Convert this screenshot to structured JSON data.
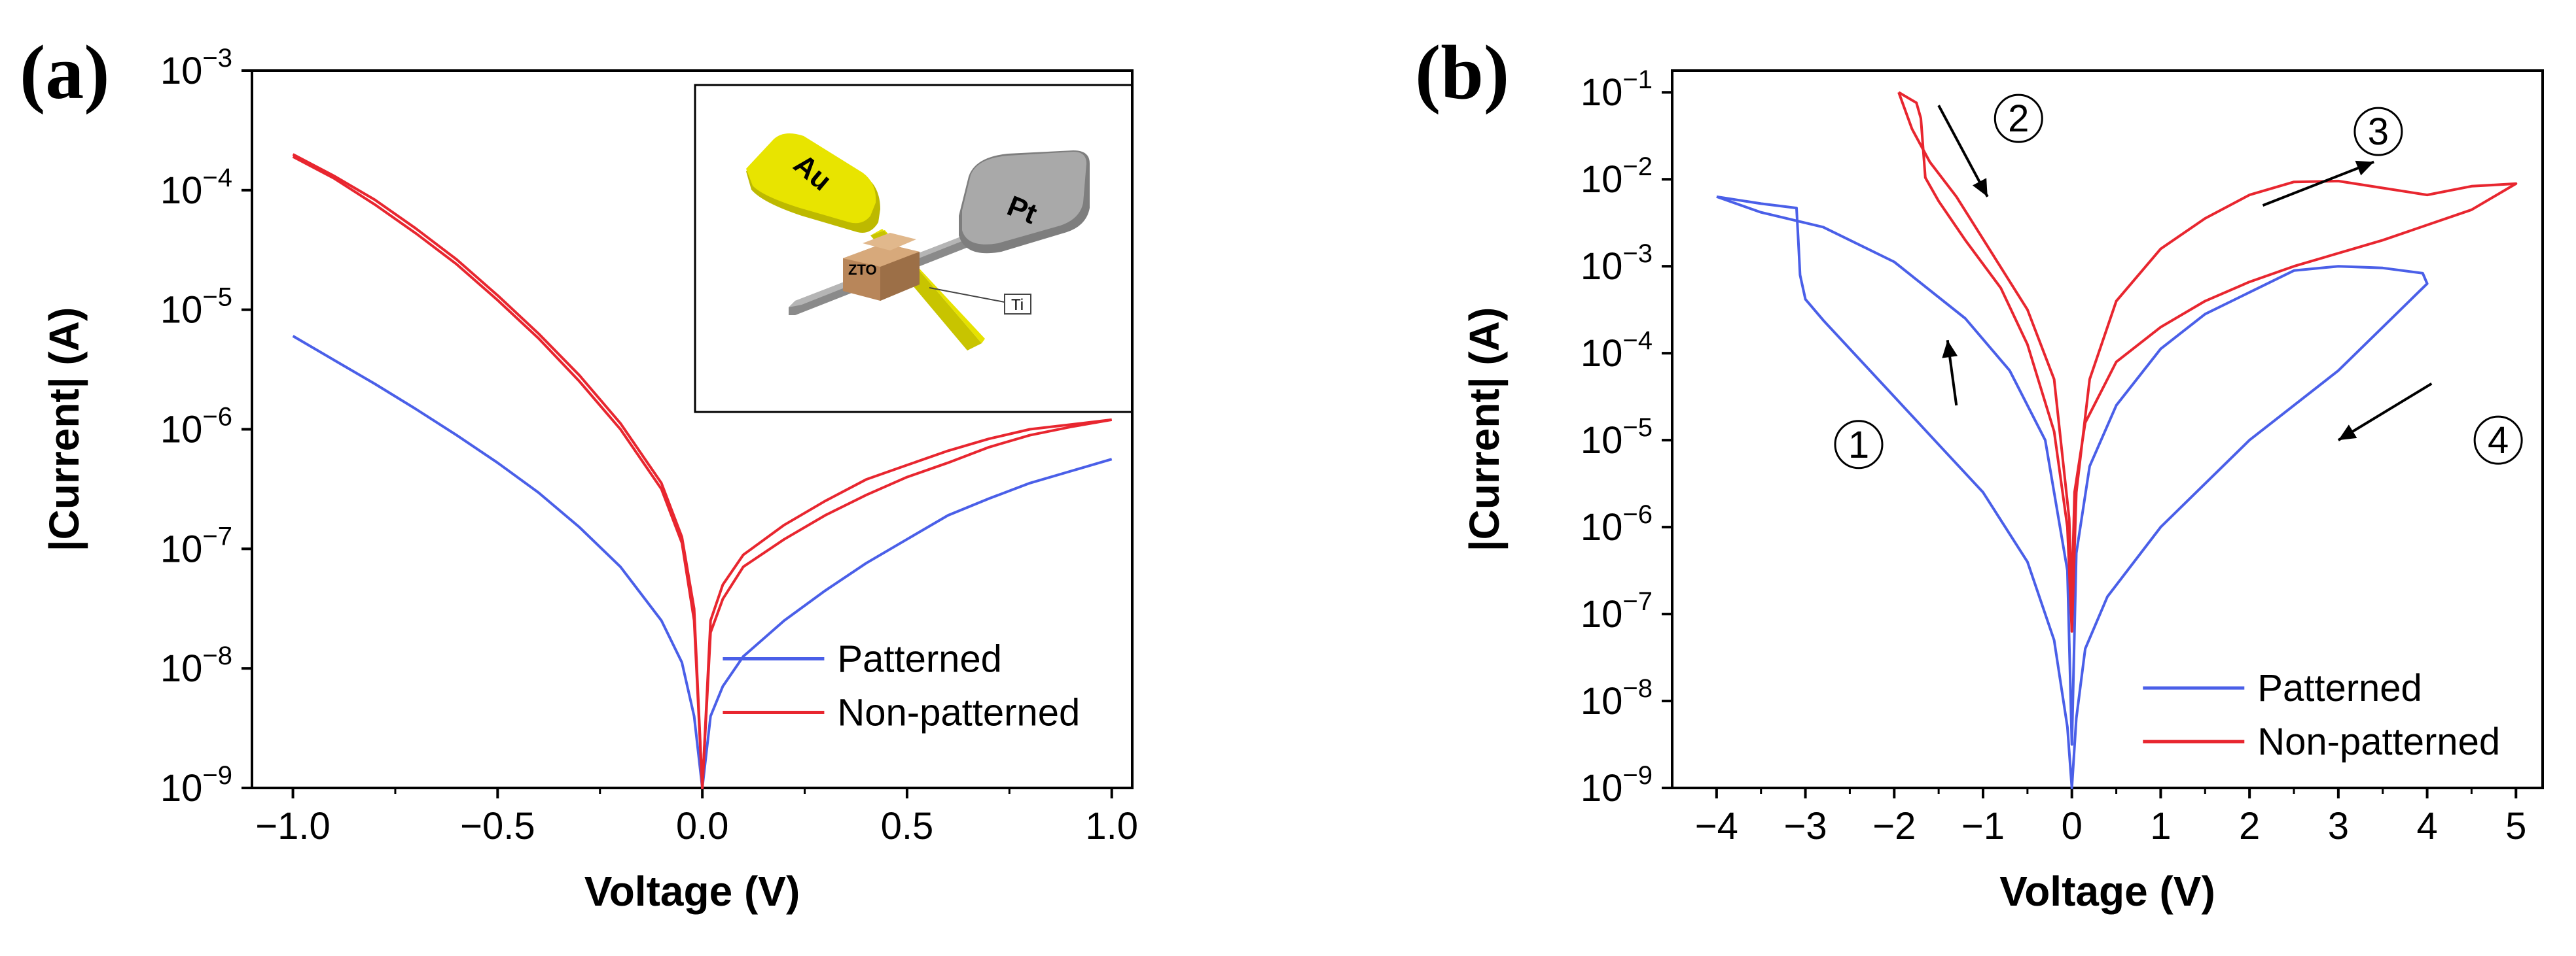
{
  "figure": {
    "colors": {
      "patterned": "#4a5fe8",
      "non_patterned": "#e8262f",
      "axis": "#000000"
    }
  },
  "chart_data": [
    {
      "panel": "(a)",
      "type": "line",
      "xlabel": "Voltage (V)",
      "ylabel": "|Current| (A)",
      "xlim": [
        -1.1,
        1.05
      ],
      "ylim_log10": [
        -9,
        -3
      ],
      "yscale": "log",
      "x_ticks": [
        -1.0,
        -0.5,
        0.0,
        0.5,
        1.0
      ],
      "x_tick_labels": [
        "−1.0",
        "−0.5",
        "0.0",
        "0.5",
        "1.0"
      ],
      "y_ticks": [
        {
          "base": "10",
          "exp": "−9",
          "log": -9
        },
        {
          "base": "10",
          "exp": "−8",
          "log": -8
        },
        {
          "base": "10",
          "exp": "−7",
          "log": -7
        },
        {
          "base": "10",
          "exp": "−6",
          "log": -6
        },
        {
          "base": "10",
          "exp": "−5",
          "log": -5
        },
        {
          "base": "10",
          "exp": "−4",
          "log": -4
        },
        {
          "base": "10",
          "exp": "−3",
          "log": -3
        }
      ],
      "legend": [
        "Patterned",
        "Non-patterned"
      ],
      "legend_position": "bottom-right",
      "series": [
        {
          "name": "Patterned",
          "color": "#4a5fe8",
          "points": [
            [
              -1.0,
              -5.22
            ],
            [
              -0.9,
              -5.42
            ],
            [
              -0.8,
              -5.62
            ],
            [
              -0.7,
              -5.83
            ],
            [
              -0.6,
              -6.05
            ],
            [
              -0.5,
              -6.28
            ],
            [
              -0.4,
              -6.53
            ],
            [
              -0.3,
              -6.82
            ],
            [
              -0.2,
              -7.15
            ],
            [
              -0.1,
              -7.6
            ],
            [
              -0.05,
              -7.95
            ],
            [
              -0.02,
              -8.4
            ],
            [
              0.0,
              -9.0
            ],
            [
              0.02,
              -8.4
            ],
            [
              0.05,
              -8.15
            ],
            [
              0.1,
              -7.9
            ],
            [
              0.2,
              -7.6
            ],
            [
              0.3,
              -7.35
            ],
            [
              0.4,
              -7.12
            ],
            [
              0.5,
              -6.92
            ],
            [
              0.6,
              -6.72
            ],
            [
              0.7,
              -6.58
            ],
            [
              0.8,
              -6.45
            ],
            [
              0.9,
              -6.35
            ],
            [
              1.0,
              -6.25
            ]
          ]
        },
        {
          "name": "Non-patterned",
          "color": "#e8262f",
          "points": [
            [
              -1.0,
              -3.7
            ],
            [
              -0.9,
              -3.88
            ],
            [
              -0.8,
              -4.08
            ],
            [
              -0.7,
              -4.32
            ],
            [
              -0.6,
              -4.58
            ],
            [
              -0.5,
              -4.88
            ],
            [
              -0.4,
              -5.2
            ],
            [
              -0.3,
              -5.55
            ],
            [
              -0.2,
              -5.95
            ],
            [
              -0.1,
              -6.45
            ],
            [
              -0.05,
              -6.9
            ],
            [
              -0.02,
              -7.5
            ],
            [
              0.0,
              -9.0
            ],
            [
              0.02,
              -7.6
            ],
            [
              0.05,
              -7.3
            ],
            [
              0.1,
              -7.05
            ],
            [
              0.2,
              -6.8
            ],
            [
              0.3,
              -6.6
            ],
            [
              0.4,
              -6.42
            ],
            [
              0.5,
              -6.3
            ],
            [
              0.6,
              -6.18
            ],
            [
              0.7,
              -6.08
            ],
            [
              0.8,
              -6.0
            ],
            [
              0.9,
              -5.96
            ],
            [
              1.0,
              -5.92
            ]
          ]
        },
        {
          "name": "Non-patterned",
          "color": "#e8262f",
          "points": [
            [
              -1.0,
              -3.72
            ],
            [
              -0.9,
              -3.9
            ],
            [
              -0.8,
              -4.12
            ],
            [
              -0.7,
              -4.36
            ],
            [
              -0.6,
              -4.62
            ],
            [
              -0.5,
              -4.92
            ],
            [
              -0.4,
              -5.24
            ],
            [
              -0.3,
              -5.6
            ],
            [
              -0.2,
              -6.0
            ],
            [
              -0.1,
              -6.5
            ],
            [
              -0.05,
              -6.95
            ],
            [
              -0.02,
              -7.6
            ],
            [
              0.0,
              -9.0
            ],
            [
              0.02,
              -7.7
            ],
            [
              0.05,
              -7.42
            ],
            [
              0.1,
              -7.15
            ],
            [
              0.2,
              -6.92
            ],
            [
              0.3,
              -6.72
            ],
            [
              0.4,
              -6.55
            ],
            [
              0.5,
              -6.4
            ],
            [
              0.6,
              -6.28
            ],
            [
              0.7,
              -6.15
            ],
            [
              0.8,
              -6.05
            ],
            [
              0.9,
              -5.98
            ],
            [
              1.0,
              -5.92
            ]
          ]
        }
      ],
      "inset": {
        "labels": [
          "Au",
          "Pt",
          "ZTO",
          "Ti"
        ]
      }
    },
    {
      "panel": "(b)",
      "type": "line",
      "xlabel": "Voltage (V)",
      "ylabel": "|Current| (A)",
      "xlim": [
        -4.5,
        5.3
      ],
      "ylim_log10": [
        -9,
        -0.75
      ],
      "yscale": "log",
      "x_ticks": [
        -4,
        -3,
        -2,
        -1,
        0,
        1,
        2,
        3,
        4,
        5
      ],
      "x_tick_labels": [
        "−4",
        "−3",
        "−2",
        "−1",
        "0",
        "1",
        "2",
        "3",
        "4",
        "5"
      ],
      "y_ticks": [
        {
          "base": "10",
          "exp": "−9",
          "log": -9
        },
        {
          "base": "10",
          "exp": "−8",
          "log": -8
        },
        {
          "base": "10",
          "exp": "−7",
          "log": -7
        },
        {
          "base": "10",
          "exp": "−6",
          "log": -6
        },
        {
          "base": "10",
          "exp": "−5",
          "log": -5
        },
        {
          "base": "10",
          "exp": "−4",
          "log": -4
        },
        {
          "base": "10",
          "exp": "−3",
          "log": -3
        },
        {
          "base": "10",
          "exp": "−2",
          "log": -2
        },
        {
          "base": "10",
          "exp": "−1",
          "log": -1
        }
      ],
      "legend": [
        "Patterned",
        "Non-patterned"
      ],
      "legend_position": "bottom-right",
      "series": [
        {
          "name": "Patterned",
          "color": "#4a5fe8",
          "points": [
            [
              -4.0,
              -2.2
            ],
            [
              -3.5,
              -2.28
            ],
            [
              -3.1,
              -2.33
            ],
            [
              -3.08,
              -2.7
            ],
            [
              -3.06,
              -3.1
            ],
            [
              -3.0,
              -3.38
            ],
            [
              -2.8,
              -3.62
            ],
            [
              -2.5,
              -3.95
            ],
            [
              -2.0,
              -4.5
            ],
            [
              -1.5,
              -5.05
            ],
            [
              -1.0,
              -5.6
            ],
            [
              -0.5,
              -6.4
            ],
            [
              -0.2,
              -7.3
            ],
            [
              -0.05,
              -8.3
            ],
            [
              0.0,
              -9.0
            ],
            [
              0.05,
              -8.2
            ],
            [
              0.15,
              -7.4
            ],
            [
              0.4,
              -6.8
            ],
            [
              1.0,
              -6.0
            ],
            [
              2.0,
              -5.0
            ],
            [
              3.0,
              -4.2
            ],
            [
              3.5,
              -3.7
            ],
            [
              3.9,
              -3.3
            ],
            [
              4.0,
              -3.2
            ],
            [
              3.95,
              -3.08
            ],
            [
              3.5,
              -3.02
            ],
            [
              3.0,
              -3.0
            ],
            [
              2.5,
              -3.05
            ],
            [
              2.0,
              -3.3
            ],
            [
              1.5,
              -3.55
            ],
            [
              1.0,
              -3.95
            ],
            [
              0.5,
              -4.6
            ],
            [
              0.2,
              -5.3
            ],
            [
              0.05,
              -6.3
            ],
            [
              0.0,
              -8.5
            ],
            [
              -0.05,
              -6.5
            ],
            [
              -0.3,
              -5.0
            ],
            [
              -0.7,
              -4.2
            ],
            [
              -1.2,
              -3.6
            ],
            [
              -2.0,
              -2.95
            ],
            [
              -2.8,
              -2.55
            ],
            [
              -3.5,
              -2.38
            ],
            [
              -4.0,
              -2.2
            ]
          ]
        },
        {
          "name": "Non-patterned",
          "color": "#e8262f",
          "points": [
            [
              -1.95,
              -1.0
            ],
            [
              -1.75,
              -1.12
            ],
            [
              -1.7,
              -1.3
            ],
            [
              -1.65,
              -1.98
            ],
            [
              -1.5,
              -2.25
            ],
            [
              -1.2,
              -2.7
            ],
            [
              -0.8,
              -3.25
            ],
            [
              -0.5,
              -3.9
            ],
            [
              -0.2,
              -4.9
            ],
            [
              -0.05,
              -6.0
            ],
            [
              0.0,
              -7.2
            ],
            [
              0.05,
              -5.6
            ],
            [
              0.2,
              -4.3
            ],
            [
              0.5,
              -3.4
            ],
            [
              1.0,
              -2.8
            ],
            [
              1.5,
              -2.45
            ],
            [
              2.0,
              -2.18
            ],
            [
              2.5,
              -2.03
            ],
            [
              3.0,
              -2.02
            ],
            [
              3.5,
              -2.1
            ],
            [
              4.0,
              -2.18
            ],
            [
              4.5,
              -2.08
            ],
            [
              5.0,
              -2.05
            ],
            [
              4.5,
              -2.35
            ],
            [
              3.5,
              -2.7
            ],
            [
              2.5,
              -3.0
            ],
            [
              2.0,
              -3.18
            ],
            [
              1.5,
              -3.4
            ],
            [
              1.0,
              -3.7
            ],
            [
              0.5,
              -4.1
            ],
            [
              0.15,
              -4.8
            ],
            [
              0.03,
              -5.6
            ],
            [
              0.0,
              -6.8
            ],
            [
              -0.03,
              -5.9
            ],
            [
              -0.2,
              -4.3
            ],
            [
              -0.5,
              -3.5
            ],
            [
              -0.9,
              -2.85
            ],
            [
              -1.3,
              -2.2
            ],
            [
              -1.6,
              -1.8
            ],
            [
              -1.8,
              -1.42
            ],
            [
              -1.95,
              -1.0
            ]
          ]
        }
      ],
      "annotations": [
        {
          "label": "1",
          "x": -2.4,
          "logy": -5.05,
          "arrow_from": [
            -1.3,
            -4.6
          ],
          "arrow_to": [
            -1.4,
            -3.85
          ]
        },
        {
          "label": "2",
          "x": -0.6,
          "logy": -1.3,
          "arrow_from": [
            -1.5,
            -1.15
          ],
          "arrow_to": [
            -0.95,
            -2.2
          ]
        },
        {
          "label": "3",
          "x": 3.45,
          "logy": -1.45,
          "arrow_from": [
            2.15,
            -2.3
          ],
          "arrow_to": [
            3.4,
            -1.8
          ]
        },
        {
          "label": "4",
          "x": 4.8,
          "logy": -5.0,
          "arrow_from": [
            4.05,
            -4.35
          ],
          "arrow_to": [
            3.0,
            -5.0
          ]
        }
      ]
    }
  ]
}
